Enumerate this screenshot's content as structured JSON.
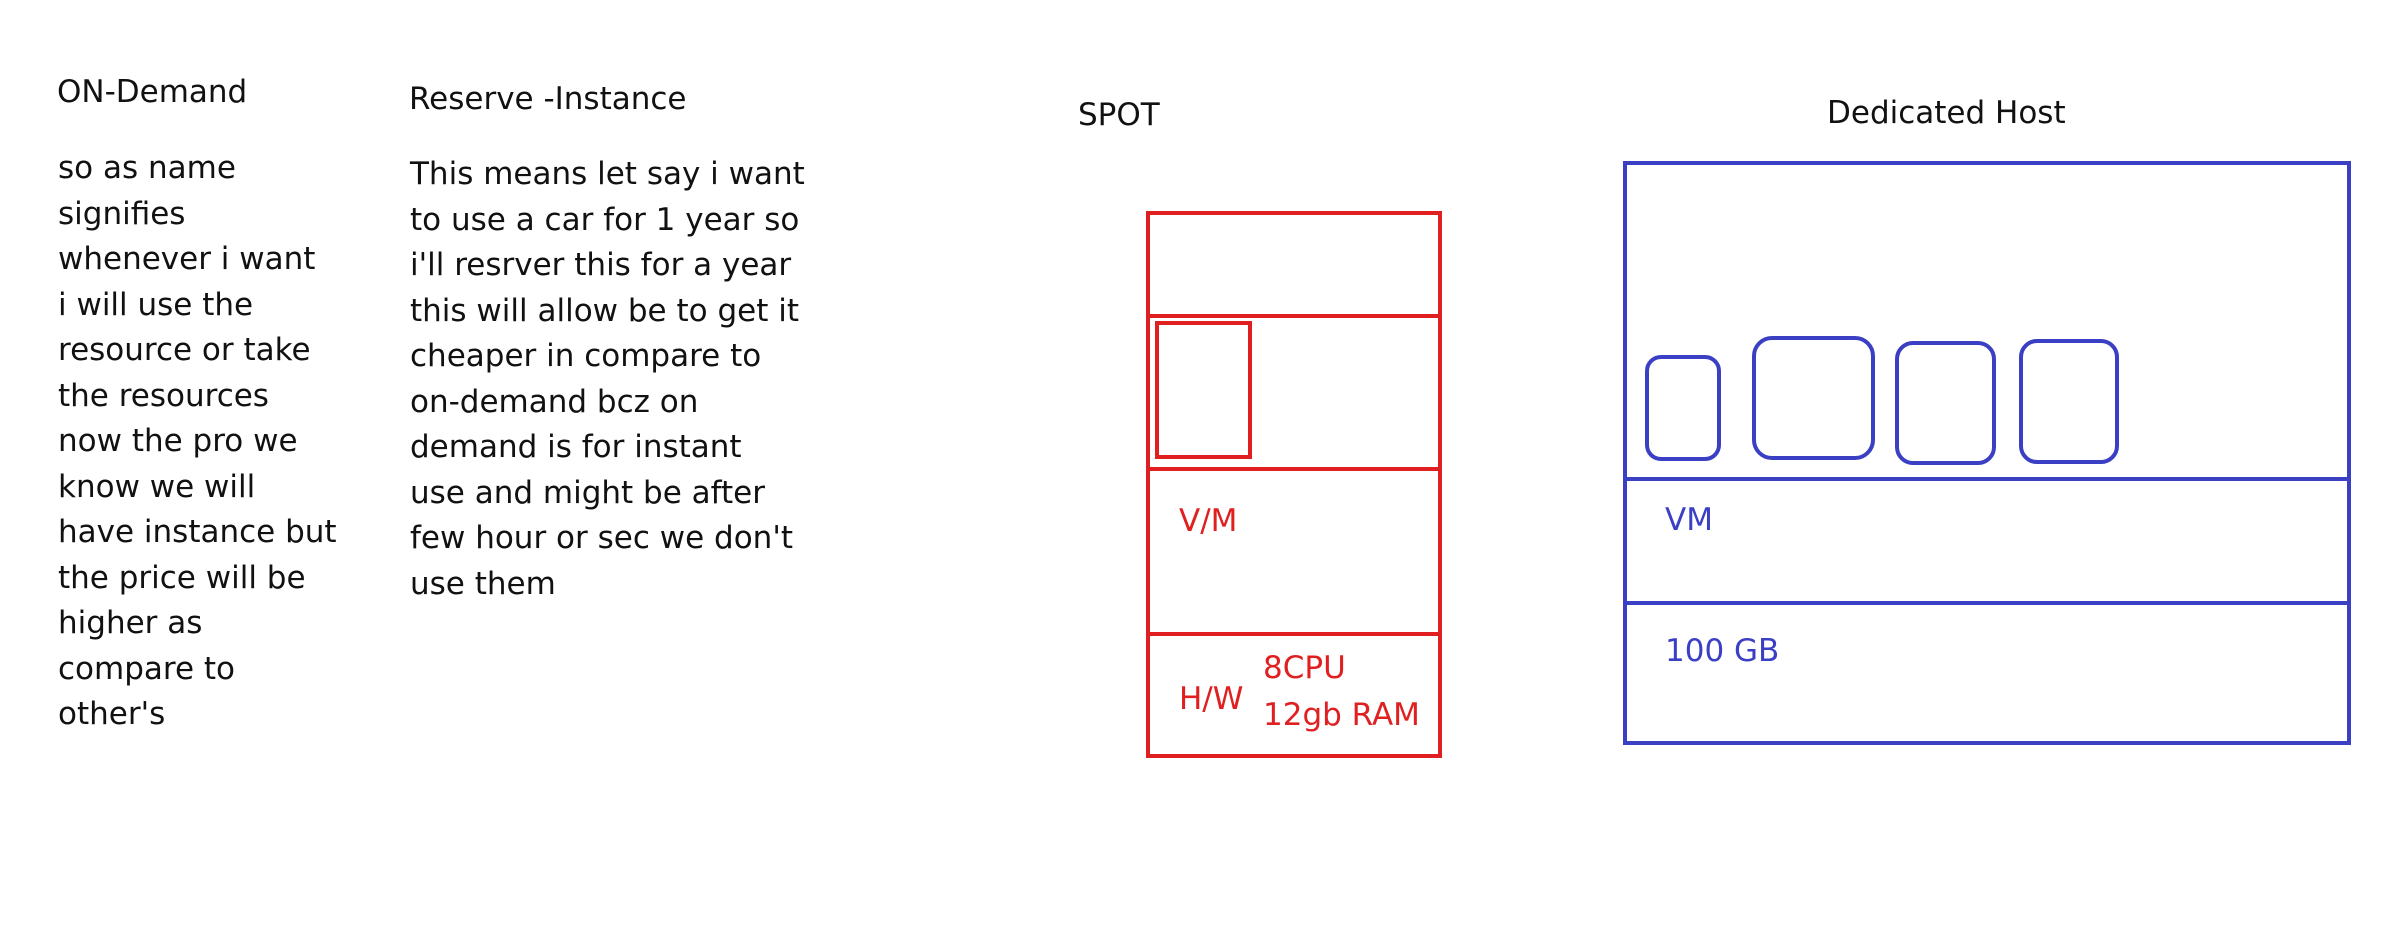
{
  "on_demand": {
    "title": "ON-Demand",
    "text": " so as name\nsignifies\nwhenever i want\ni will use the\nresource or take\nthe resources\nnow the pro we\nknow we will\nhave instance but\nthe price will be\nhigher as\ncompare to\nother's"
  },
  "reserve_instance": {
    "title": "Reserve -Instance",
    "text": "This means let say i want\nto use a car for 1 year so\ni'll resrver this for a year\nthis will allow be to get it\ncheaper in compare to\non-demand bcz on\ndemand is for instant\nuse and might be after\nfew hour or sec we don't\nuse them"
  },
  "spot": {
    "title": "SPOT",
    "vm_label": "V/M",
    "hw_label": "H/W",
    "cpu_label": "8CPU",
    "ram_label": "12gb RAM",
    "color": "#e02020"
  },
  "dedicated_host": {
    "title": "Dedicated Host",
    "vm_label": "VM",
    "storage_label": "100 GB",
    "color": "#3b3fc4"
  }
}
